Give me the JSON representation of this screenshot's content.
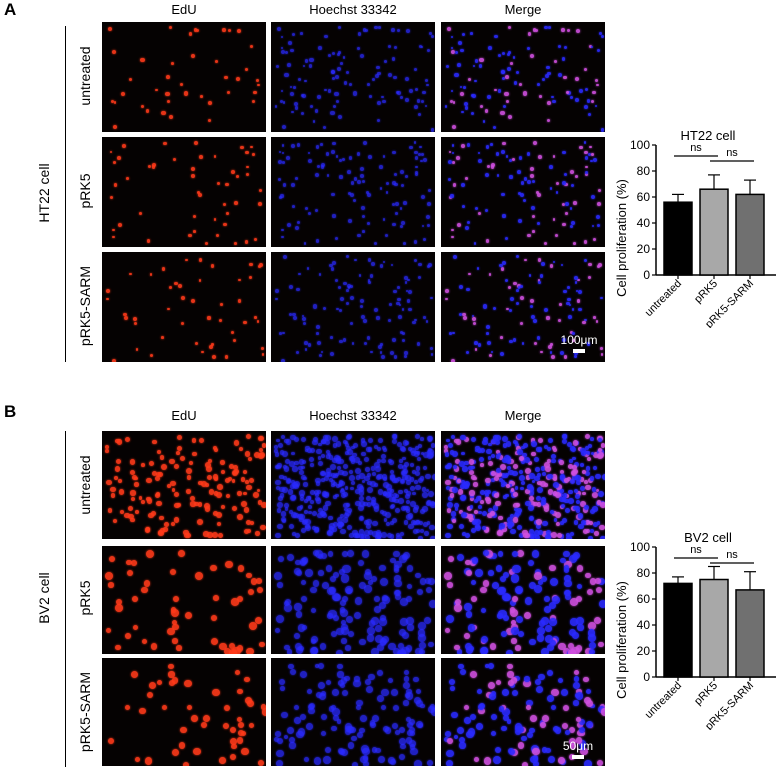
{
  "panels": {
    "A": {
      "letter": "A",
      "group_label": "HT22 cell",
      "columns": [
        "EdU",
        "Hoechst 33342",
        "Merge"
      ],
      "rows": [
        "untreated",
        "pRK5",
        "pRK5-SARM"
      ],
      "scale_bar": "100μm"
    },
    "B": {
      "letter": "B",
      "group_label": "BV2 cell",
      "columns": [
        "EdU",
        "Hoechst 33342",
        "Merge"
      ],
      "rows": [
        "untreated",
        "pRK5",
        "pRK5-SARM"
      ],
      "scale_bar": "50μm"
    }
  },
  "colors": {
    "edu": "#ff3a1a",
    "hoechst": "#2a2aff",
    "merge": "#d050e0",
    "bar_untreated": "#000000",
    "bar_prk5": "#a8a8a8",
    "bar_prk5_sarm": "#707070"
  },
  "chart_data": [
    {
      "type": "bar",
      "title": "HT22 cell",
      "categories": [
        "untreated",
        "pRK5",
        "pRK5-SARM"
      ],
      "values": [
        56,
        66,
        62
      ],
      "error": [
        6,
        11,
        11
      ],
      "ylabel": "Cell proliferation (%)",
      "xlabel": "",
      "ylim": [
        0,
        100
      ],
      "yticks": [
        0,
        20,
        40,
        60,
        80,
        100
      ],
      "annotations": [
        {
          "between": [
            "untreated",
            "pRK5"
          ],
          "label": "ns"
        },
        {
          "between": [
            "pRK5",
            "pRK5-SARM"
          ],
          "label": "ns"
        }
      ],
      "grid": false,
      "legend": "none"
    },
    {
      "type": "bar",
      "title": "BV2 cell",
      "categories": [
        "untreated",
        "pRK5",
        "pRK5-SARM"
      ],
      "values": [
        72,
        75,
        67
      ],
      "error": [
        5,
        10,
        14
      ],
      "ylabel": "Cell proliferation (%)",
      "xlabel": "",
      "ylim": [
        0,
        100
      ],
      "yticks": [
        0,
        20,
        40,
        60,
        80,
        100
      ],
      "annotations": [
        {
          "between": [
            "untreated",
            "pRK5"
          ],
          "label": "ns"
        },
        {
          "between": [
            "pRK5",
            "pRK5-SARM"
          ],
          "label": "ns"
        }
      ],
      "grid": false,
      "legend": "none"
    }
  ]
}
